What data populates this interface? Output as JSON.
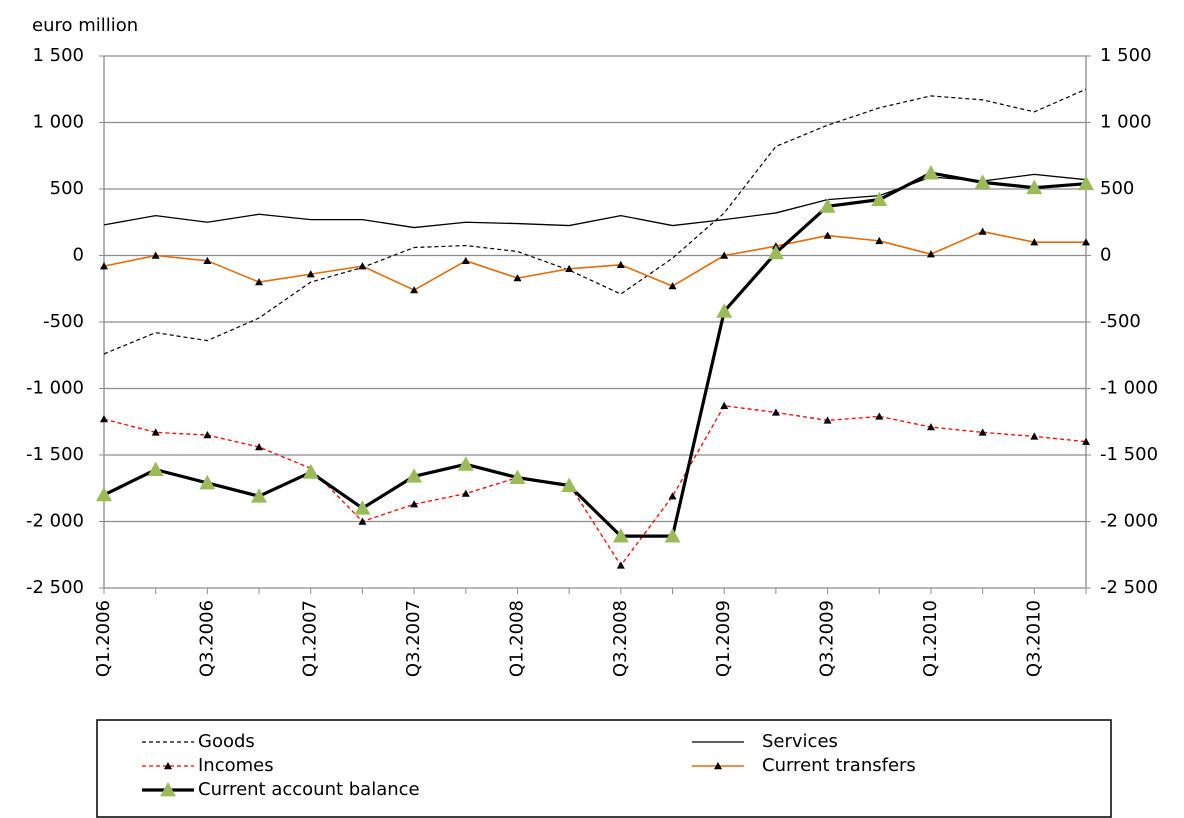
{
  "chart_data": {
    "type": "line",
    "y_axis_label": "euro million",
    "categories": [
      "Q1.2006",
      null,
      "Q3.2006",
      null,
      "Q1.2007",
      null,
      "Q3.2007",
      null,
      "Q1.2008",
      null,
      "Q3.2008",
      null,
      "Q1.2009",
      null,
      "Q3.2009",
      null,
      "Q1.2010",
      null,
      "Q3.2010",
      null
    ],
    "ylim": [
      -2500,
      1500
    ],
    "yticks": [
      {
        "value": -2500,
        "label": "-2 500"
      },
      {
        "value": -2000,
        "label": "-2 000"
      },
      {
        "value": -1500,
        "label": "-1 500"
      },
      {
        "value": -1000,
        "label": "-1 000"
      },
      -500,
      0,
      500,
      {
        "value": 1000,
        "label": "1 000"
      },
      {
        "value": 1500,
        "label": "1 500"
      }
    ],
    "y2lim": [
      -2500,
      1500
    ],
    "y2ticks": [
      {
        "value": -2500,
        "label": "-2 500"
      },
      {
        "value": -2000,
        "label": "-2 000"
      },
      {
        "value": -1500,
        "label": "-1 500"
      },
      {
        "value": -1000,
        "label": "-1 000"
      },
      -500,
      0,
      500,
      {
        "value": 1000,
        "label": "1 000"
      },
      {
        "value": 1500,
        "label": "1 500"
      }
    ],
    "grid": true,
    "legend": "bottom",
    "series": [
      {
        "name": "Goods",
        "color": "#000000",
        "dash": true,
        "width": 1.2,
        "values": [
          -740,
          -580,
          -640,
          -470,
          -200,
          -90,
          60,
          75,
          30,
          -110,
          -290,
          -20,
          320,
          820,
          980,
          1110,
          1200,
          1170,
          1080,
          1250
        ]
      },
      {
        "name": "Services",
        "color": "#000000",
        "width": 1.3,
        "values": [
          230,
          300,
          250,
          310,
          270,
          270,
          210,
          250,
          240,
          225,
          300,
          225,
          270,
          320,
          420,
          450,
          590,
          560,
          610,
          570
        ]
      },
      {
        "name": "Incomes",
        "color": "#ff0000",
        "dash": true,
        "width": 1.3,
        "marker": "triangle",
        "marker_color": "#000000",
        "marker_size": 4,
        "values": [
          -1230,
          -1330,
          -1350,
          -1440,
          -1600,
          -2000,
          -1870,
          -1790,
          -1670,
          -1720,
          -2330,
          -1810,
          -1130,
          -1180,
          -1240,
          -1210,
          -1290,
          -1330,
          -1360,
          -1400
        ]
      },
      {
        "name": "Current transfers",
        "color": "#e46c0a",
        "width": 1.6,
        "marker": "triangle",
        "marker_color": "#000000",
        "marker_size": 4,
        "values": [
          -80,
          0,
          -40,
          -200,
          -140,
          -80,
          -260,
          -40,
          -170,
          -100,
          -70,
          -230,
          0,
          70,
          150,
          110,
          10,
          180,
          100,
          100
        ]
      },
      {
        "name": "Current account  balance",
        "color": "#000000",
        "width": 3.2,
        "marker": "triangle",
        "marker_color": "#9bbb59",
        "marker_size": 8,
        "values": [
          -1800,
          -1610,
          -1710,
          -1810,
          -1630,
          -1900,
          -1660,
          -1570,
          -1670,
          -1730,
          -2110,
          -2110,
          -420,
          20,
          370,
          420,
          620,
          550,
          510,
          540
        ]
      }
    ]
  }
}
